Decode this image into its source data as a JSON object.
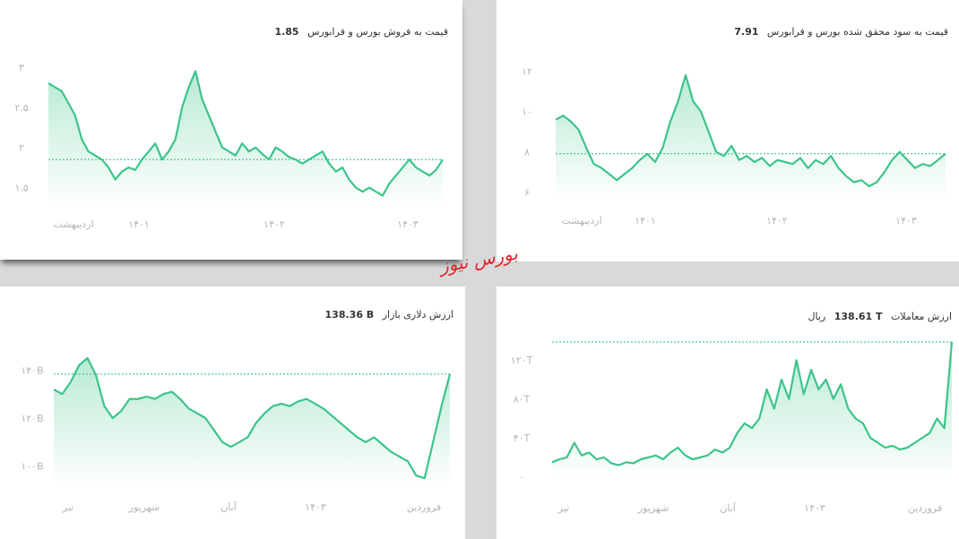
{
  "colors": {
    "line": "#3cc48b",
    "fill_top": "#b7ead3",
    "fill_bottom": "#ffffff",
    "watermark": "#e2252d"
  },
  "watermark": "بورس نیوز",
  "chart_data": [
    {
      "type": "area",
      "title": "قیمت به فروش بورس و فرابورس",
      "current_value": "1.85",
      "y_ticks": [
        "3",
        "2.5",
        "2",
        "1.5"
      ],
      "y_tick_values": [
        3,
        2.5,
        2,
        1.5
      ],
      "ylim": [
        1.25,
        3.0
      ],
      "x_ticks": [
        "اردیبهشت",
        "1401",
        "1402",
        "1403"
      ],
      "reference_line": 1.85,
      "series": [
        {
          "values": [
            2.8,
            2.75,
            2.7,
            2.55,
            2.4,
            2.1,
            1.95,
            1.9,
            1.85,
            1.75,
            1.6,
            1.7,
            1.75,
            1.72,
            1.85,
            1.95,
            2.05,
            1.85,
            1.95,
            2.1,
            2.5,
            2.75,
            2.95,
            2.6,
            2.4,
            2.2,
            2.0,
            1.95,
            1.9,
            2.05,
            1.95,
            2.0,
            1.92,
            1.85,
            2.0,
            1.95,
            1.88,
            1.85,
            1.8,
            1.85,
            1.9,
            1.95,
            1.8,
            1.7,
            1.75,
            1.6,
            1.5,
            1.45,
            1.5,
            1.45,
            1.4,
            1.55,
            1.65,
            1.75,
            1.85,
            1.75,
            1.7,
            1.65,
            1.72,
            1.85
          ]
        }
      ]
    },
    {
      "type": "area",
      "title": "قیمت به سود محقق شده بورس و فرابورس",
      "current_value": "7.91",
      "y_ticks": [
        "12",
        "10",
        "8",
        "6"
      ],
      "y_tick_values": [
        12,
        10,
        8,
        6
      ],
      "ylim": [
        5.5,
        12.2
      ],
      "x_ticks": [
        "اردیبهشت",
        "1401",
        "1402",
        "1403"
      ],
      "reference_line": 7.91,
      "series": [
        {
          "values": [
            9.6,
            9.8,
            9.5,
            9.1,
            8.2,
            7.4,
            7.2,
            6.9,
            6.6,
            6.9,
            7.2,
            7.6,
            7.9,
            7.5,
            8.2,
            9.5,
            10.5,
            11.8,
            10.5,
            10.0,
            9.0,
            8.0,
            7.8,
            8.3,
            7.6,
            7.8,
            7.5,
            7.7,
            7.3,
            7.6,
            7.5,
            7.4,
            7.7,
            7.2,
            7.6,
            7.4,
            7.8,
            7.2,
            6.8,
            6.5,
            6.6,
            6.3,
            6.5,
            7.0,
            7.6,
            8.0,
            7.6,
            7.2,
            7.4,
            7.3,
            7.6,
            7.91
          ]
        }
      ]
    },
    {
      "type": "area",
      "title": "ارزش دلاری بازار",
      "current_value": "138.36 B",
      "y_ticks": [
        "140B",
        "120B",
        "100B"
      ],
      "y_tick_values": [
        140,
        120,
        100
      ],
      "ylim": [
        92,
        148
      ],
      "x_ticks": [
        "تیر",
        "شهریور",
        "آبان",
        "1403",
        "فروردین"
      ],
      "reference_line": 138.36,
      "series": [
        {
          "values": [
            132,
            130,
            135,
            142,
            145,
            138,
            125,
            120,
            123,
            128,
            128,
            129,
            128,
            130,
            131,
            128,
            124,
            122,
            120,
            115,
            110,
            108,
            110,
            112,
            118,
            122,
            125,
            126,
            125,
            127,
            128,
            126,
            124,
            121,
            118,
            115,
            112,
            110,
            112,
            109,
            106,
            104,
            102,
            96,
            95,
            110,
            125,
            138.36
          ]
        }
      ]
    },
    {
      "type": "area",
      "title": "ارزش معاملات",
      "current_value": "138.61 T",
      "unit": "ریال",
      "y_ticks": [
        "120T",
        "80T",
        "40T",
        "0"
      ],
      "y_tick_values": [
        120,
        80,
        40,
        0
      ],
      "ylim": [
        -5,
        145
      ],
      "x_ticks": [
        "تیر",
        "شهریور",
        "آبان",
        "1403",
        "فروردین"
      ],
      "reference_line": 138.61,
      "series": [
        {
          "values": [
            15,
            18,
            20,
            35,
            22,
            25,
            18,
            20,
            14,
            12,
            15,
            14,
            18,
            20,
            22,
            18,
            25,
            30,
            22,
            18,
            20,
            22,
            28,
            25,
            30,
            45,
            55,
            50,
            60,
            90,
            70,
            100,
            80,
            120,
            85,
            110,
            90,
            100,
            80,
            95,
            70,
            60,
            55,
            40,
            35,
            30,
            32,
            28,
            30,
            35,
            40,
            45,
            60,
            50,
            138.61
          ]
        }
      ]
    }
  ]
}
